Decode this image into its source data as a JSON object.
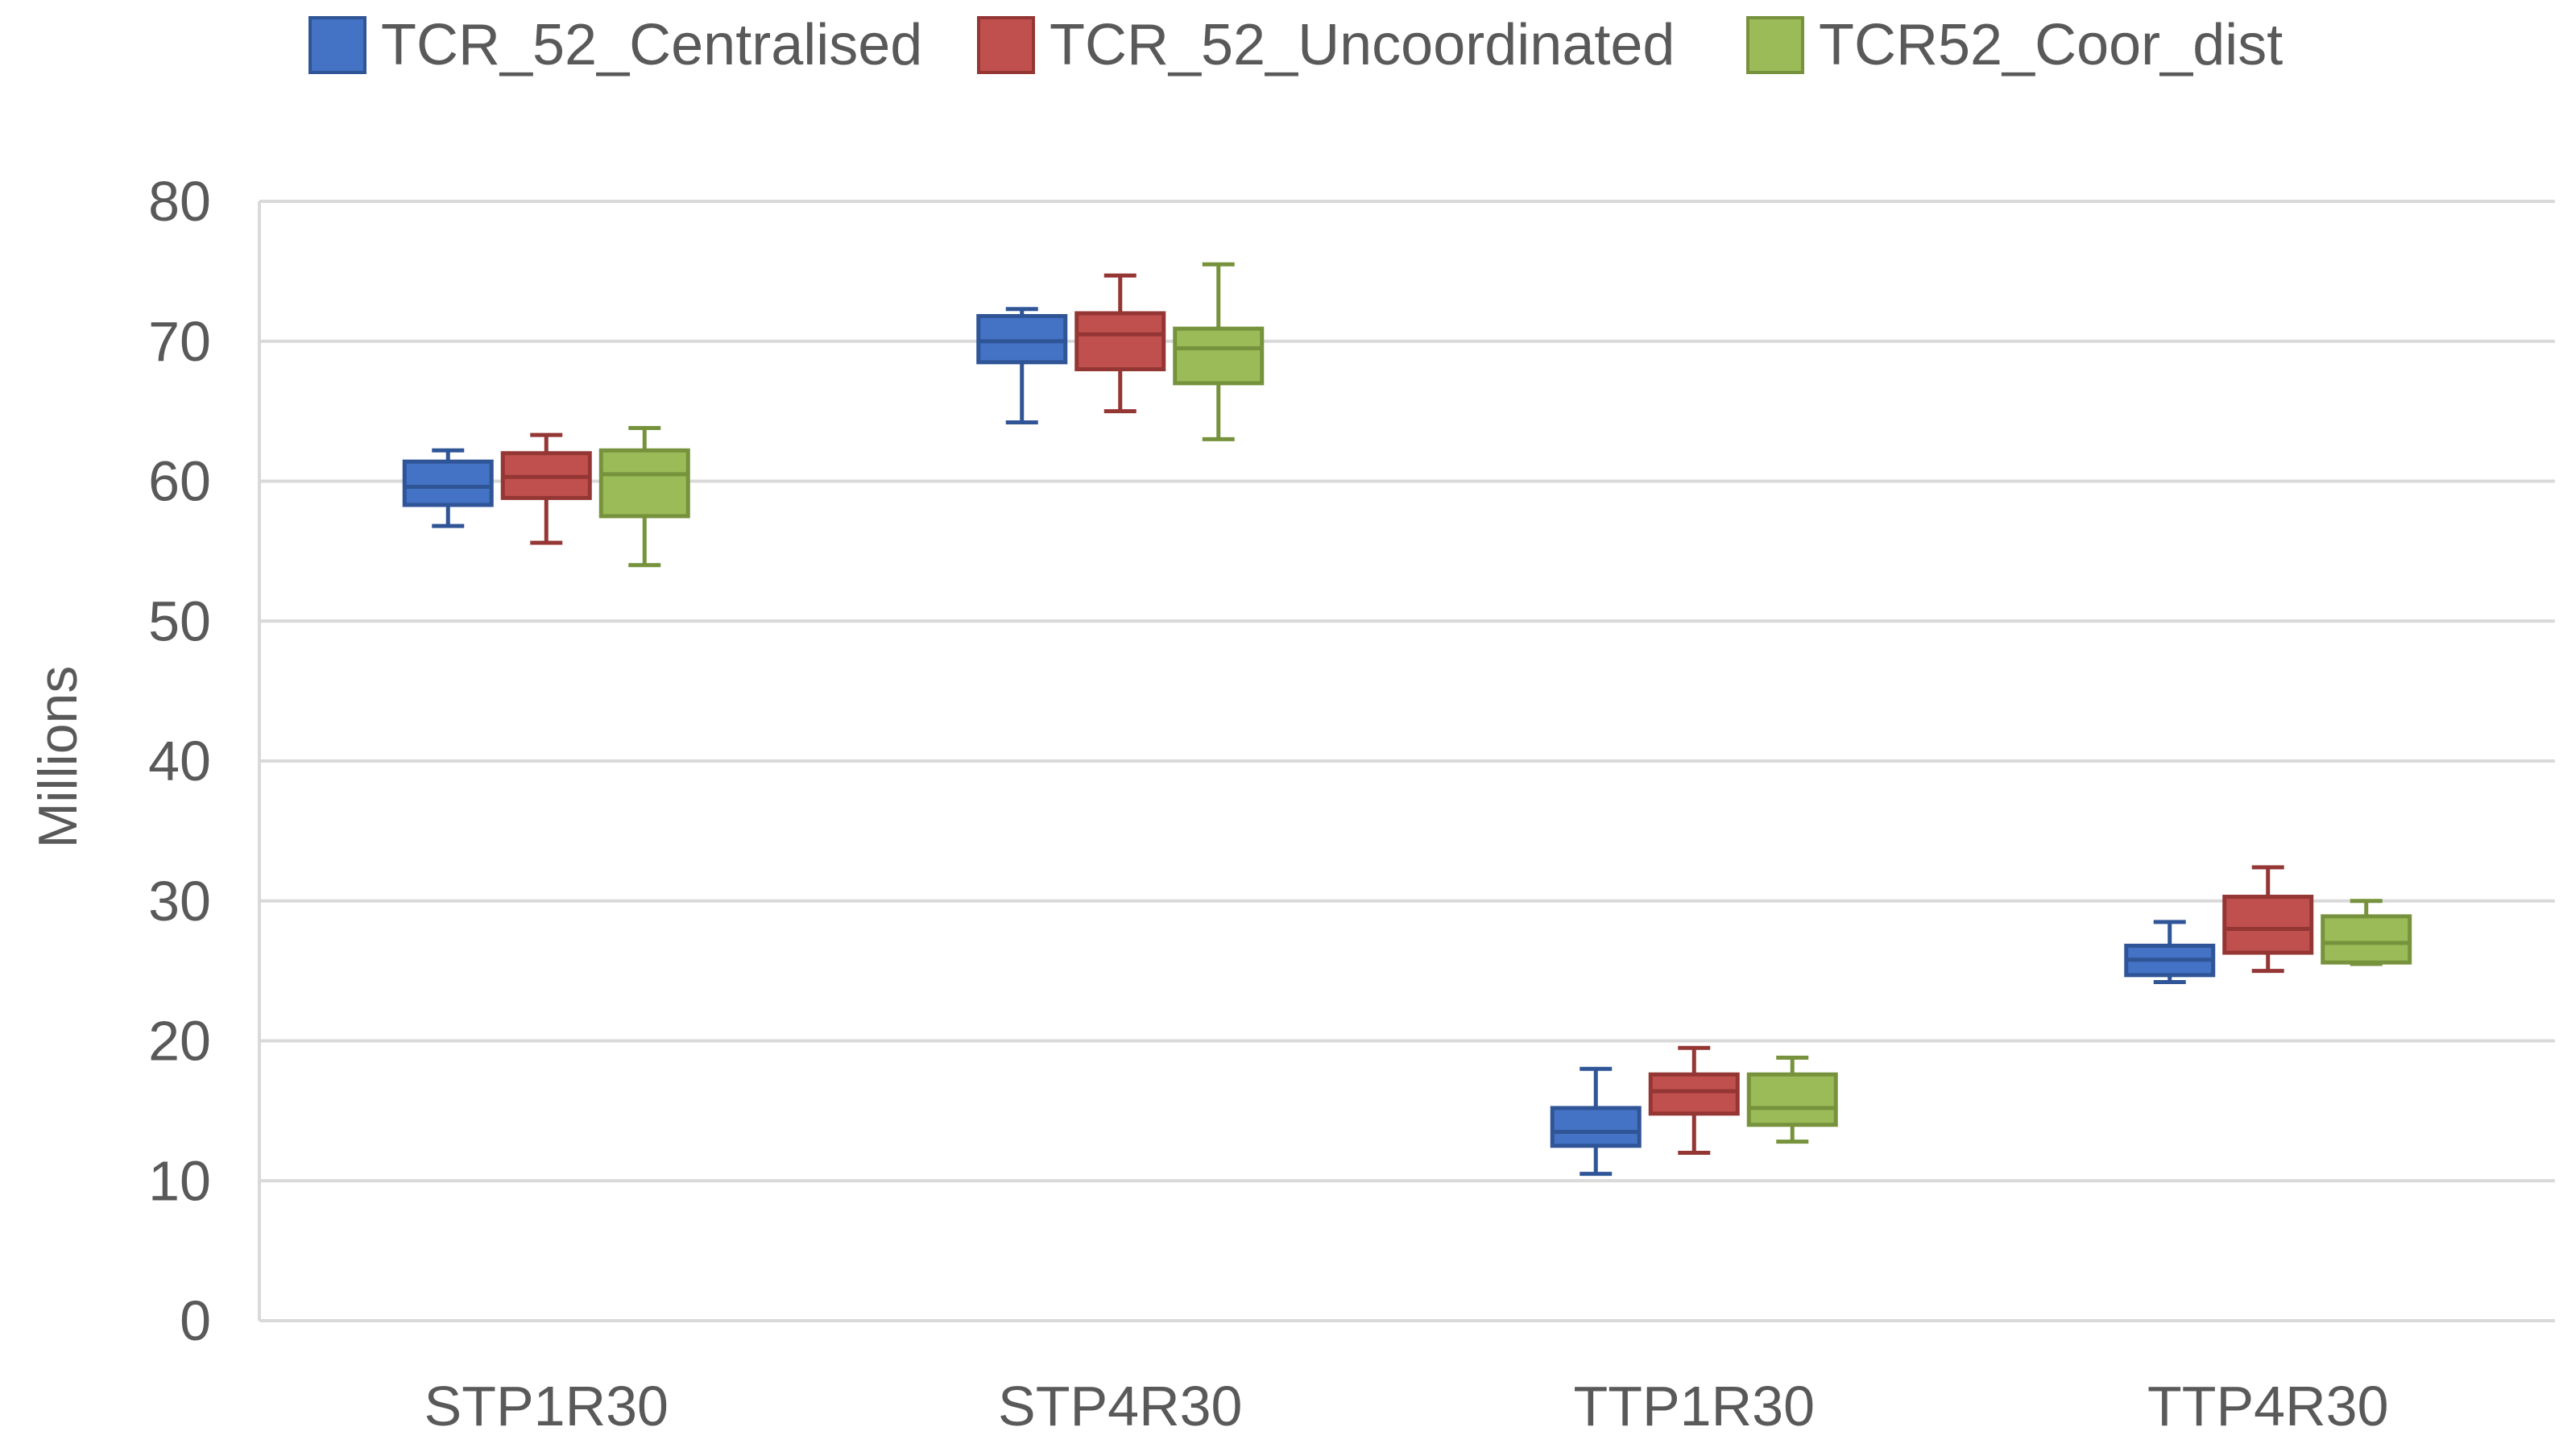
{
  "chart_data": {
    "type": "boxplot",
    "title": "",
    "xlabel": "",
    "ylabel": "Millions",
    "ylim": [
      0,
      80
    ],
    "yticks": [
      0,
      10,
      20,
      30,
      40,
      50,
      60,
      70,
      80
    ],
    "grid": true,
    "legend_position": "top",
    "categories": [
      "STP1R30",
      "STP4R30",
      "TTP1R30",
      "TTP4R30"
    ],
    "series": [
      {
        "name": "TCR_52_Centralised",
        "color": "#4472c4",
        "stroke": "#2f5597",
        "boxes": [
          {
            "min": 56.8,
            "q1": 58.3,
            "median": 59.6,
            "q3": 61.4,
            "max": 62.2
          },
          {
            "min": 64.2,
            "q1": 68.5,
            "median": 70.0,
            "q3": 71.8,
            "max": 72.3
          },
          {
            "min": 10.5,
            "q1": 12.5,
            "median": 13.5,
            "q3": 15.2,
            "max": 18.0
          },
          {
            "min": 24.2,
            "q1": 24.7,
            "median": 25.8,
            "q3": 26.8,
            "max": 28.5
          }
        ]
      },
      {
        "name": "TCR_52_Uncoordinated",
        "color": "#c0504d",
        "stroke": "#943634",
        "boxes": [
          {
            "min": 55.6,
            "q1": 58.8,
            "median": 60.3,
            "q3": 62.0,
            "max": 63.3
          },
          {
            "min": 65.0,
            "q1": 68.0,
            "median": 70.5,
            "q3": 72.0,
            "max": 74.7
          },
          {
            "min": 12.0,
            "q1": 14.8,
            "median": 16.4,
            "q3": 17.6,
            "max": 19.5
          },
          {
            "min": 25.0,
            "q1": 26.3,
            "median": 28.0,
            "q3": 30.3,
            "max": 32.4
          }
        ]
      },
      {
        "name": "TCR52_Coor_dist",
        "color": "#9bbb59",
        "stroke": "#76923c",
        "boxes": [
          {
            "min": 54.0,
            "q1": 57.5,
            "median": 60.5,
            "q3": 62.2,
            "max": 63.8
          },
          {
            "min": 63.0,
            "q1": 67.0,
            "median": 69.5,
            "q3": 70.9,
            "max": 75.5
          },
          {
            "min": 12.8,
            "q1": 14.0,
            "median": 15.2,
            "q3": 17.6,
            "max": 18.8
          },
          {
            "min": 25.5,
            "q1": 25.6,
            "median": 27.0,
            "q3": 28.9,
            "max": 30.0
          }
        ]
      }
    ]
  }
}
